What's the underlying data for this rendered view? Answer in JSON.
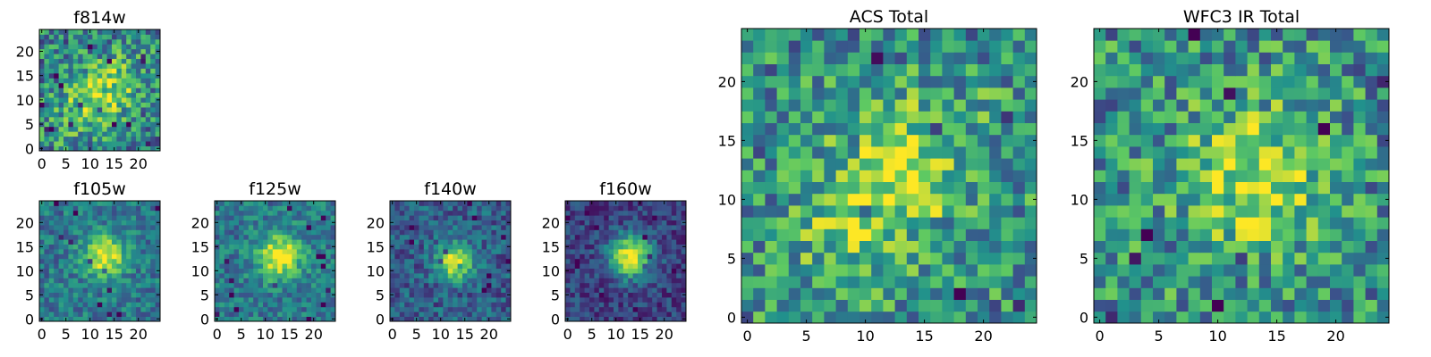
{
  "colormap": "viridis",
  "colormap_stops": [
    "#440154",
    "#3b528b",
    "#21918c",
    "#5ec962",
    "#fde725"
  ],
  "chart_data": [
    {
      "type": "heatmap",
      "id": "f814w",
      "title": "f814w",
      "grid_size": 25,
      "x_range": [
        -0.5,
        24.5
      ],
      "y_range": [
        -0.5,
        24.5
      ],
      "xticks": [
        0,
        5,
        10,
        15,
        20
      ],
      "yticks": [
        0,
        5,
        10,
        15,
        20
      ],
      "peak": [
        12,
        11
      ],
      "peak_width": 5.0,
      "amplitude": 0.45,
      "background": 0.45,
      "noise": 0.3,
      "elongation": 0.6,
      "seed": 814
    },
    {
      "type": "heatmap",
      "id": "f105w",
      "title": "f105w",
      "grid_size": 25,
      "x_range": [
        -0.5,
        24.5
      ],
      "y_range": [
        -0.5,
        24.5
      ],
      "xticks": [
        0,
        5,
        10,
        15,
        20
      ],
      "yticks": [
        0,
        5,
        10,
        15,
        20
      ],
      "peak": [
        13,
        13
      ],
      "peak_width": 3.0,
      "amplitude": 0.6,
      "background": 0.4,
      "noise": 0.18,
      "elongation": 0,
      "seed": 105
    },
    {
      "type": "heatmap",
      "id": "f125w",
      "title": "f125w",
      "grid_size": 25,
      "x_range": [
        -0.5,
        24.5
      ],
      "y_range": [
        -0.5,
        24.5
      ],
      "xticks": [
        0,
        5,
        10,
        15,
        20
      ],
      "yticks": [
        0,
        5,
        10,
        15,
        20
      ],
      "peak": [
        13,
        13
      ],
      "peak_width": 3.2,
      "amplitude": 0.6,
      "background": 0.4,
      "noise": 0.18,
      "elongation": 0,
      "seed": 125
    },
    {
      "type": "heatmap",
      "id": "f140w",
      "title": "f140w",
      "grid_size": 25,
      "x_range": [
        -0.5,
        24.5
      ],
      "y_range": [
        -0.5,
        24.5
      ],
      "xticks": [
        0,
        5,
        10,
        15,
        20
      ],
      "yticks": [
        0,
        5,
        10,
        15,
        20
      ],
      "peak": [
        13,
        12
      ],
      "peak_width": 2.6,
      "amplitude": 0.7,
      "background": 0.3,
      "noise": 0.18,
      "elongation": 0,
      "seed": 140
    },
    {
      "type": "heatmap",
      "id": "f160w",
      "title": "f160w",
      "grid_size": 25,
      "x_range": [
        -0.5,
        24.5
      ],
      "y_range": [
        -0.5,
        24.5
      ],
      "xticks": [
        0,
        5,
        10,
        15,
        20
      ],
      "yticks": [
        0,
        5,
        10,
        15,
        20
      ],
      "peak": [
        13,
        13
      ],
      "peak_width": 3.0,
      "amplitude": 0.8,
      "background": 0.2,
      "noise": 0.15,
      "elongation": 0,
      "seed": 160
    },
    {
      "type": "heatmap",
      "id": "acs_total",
      "title": "ACS Total",
      "grid_size": 25,
      "x_range": [
        -0.5,
        24.5
      ],
      "y_range": [
        -0.5,
        24.5
      ],
      "xticks": [
        0,
        5,
        10,
        15,
        20
      ],
      "yticks": [
        0,
        5,
        10,
        15,
        20
      ],
      "peak": [
        12,
        11
      ],
      "peak_width": 4.5,
      "amplitude": 0.4,
      "background": 0.5,
      "noise": 0.3,
      "elongation": 0.6,
      "seed": 7
    },
    {
      "type": "heatmap",
      "id": "wfc3_ir_total",
      "title": "WFC3 IR Total",
      "grid_size": 25,
      "x_range": [
        -0.5,
        24.5
      ],
      "y_range": [
        -0.5,
        24.5
      ],
      "xticks": [
        0,
        5,
        10,
        15,
        20
      ],
      "yticks": [
        0,
        5,
        10,
        15,
        20
      ],
      "peak": [
        13,
        12
      ],
      "peak_width": 4.0,
      "amplitude": 0.4,
      "background": 0.5,
      "noise": 0.3,
      "elongation": 0,
      "seed": 33
    }
  ]
}
